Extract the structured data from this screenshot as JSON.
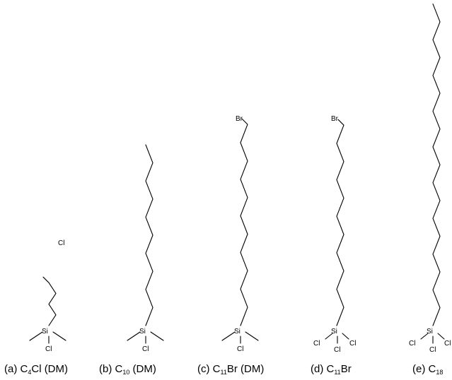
{
  "figure": {
    "molecules": [
      {
        "id": "a",
        "chain_carbons": 4,
        "head": {
          "si": "Si",
          "substituents": [
            "Cl"
          ],
          "methyls": 2
        },
        "terminal": "Cl",
        "caption": {
          "prefix": "(a) C",
          "sub": "4",
          "suffix": "Cl (DM)"
        }
      },
      {
        "id": "b",
        "chain_carbons": 10,
        "head": {
          "si": "Si",
          "substituents": [
            "Cl"
          ],
          "methyls": 2
        },
        "terminal": "",
        "caption": {
          "prefix": "(b) C",
          "sub": "10",
          "suffix": " (DM)"
        }
      },
      {
        "id": "c",
        "chain_carbons": 11,
        "head": {
          "si": "Si",
          "substituents": [
            "Cl"
          ],
          "methyls": 2
        },
        "terminal": "Br",
        "caption": {
          "prefix": "(c) C",
          "sub": "11",
          "suffix": "Br (DM)"
        }
      },
      {
        "id": "d",
        "chain_carbons": 11,
        "head": {
          "si": "Si",
          "substituents": [
            "Cl",
            "Cl",
            "Cl"
          ],
          "methyls": 0
        },
        "terminal": "Br",
        "caption": {
          "prefix": "(d) C",
          "sub": "11",
          "suffix": "Br"
        }
      },
      {
        "id": "e",
        "chain_carbons": 18,
        "head": {
          "si": "Si",
          "substituents": [
            "Cl",
            "Cl",
            "Cl"
          ],
          "methyls": 0
        },
        "terminal": "",
        "caption": {
          "prefix": "(e) C",
          "sub": "18",
          "suffix": ""
        }
      }
    ]
  }
}
